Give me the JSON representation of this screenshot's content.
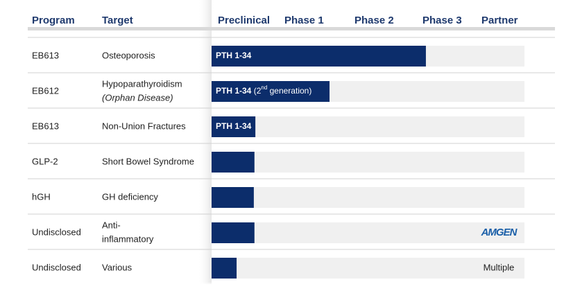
{
  "header": {
    "columns": [
      "Program",
      "Target",
      "Preclinical",
      "Phase 1",
      "Phase 2",
      "Phase 3",
      "Partner"
    ]
  },
  "progress_range": [
    0,
    100
  ],
  "rows": [
    {
      "program": "EB613",
      "target": [
        "Osteoporosis"
      ],
      "bar_label": [
        "PTH 1-34"
      ],
      "progress": 68.5
    },
    {
      "program": "EB612",
      "target": [
        "Hypoparathyroidism",
        "(Orphan Disease)"
      ],
      "bar_label": [
        "PTH 1-34",
        " (2",
        "nd",
        " generation)"
      ],
      "progress": 37.7
    },
    {
      "program": "EB613",
      "target": [
        "Non-Union Fractures"
      ],
      "bar_label": [
        "PTH 1-34"
      ],
      "progress": 14
    },
    {
      "program": "GLP-2",
      "target": [
        "Short Bowel Syndrome"
      ],
      "progress": 13.7
    },
    {
      "program": "hGH",
      "target": [
        "GH deficiency"
      ],
      "progress": 13.5
    },
    {
      "program": "Undisclosed",
      "target": [
        "Anti-",
        "inflammatory"
      ],
      "progress": 13.7,
      "partner": "AMGEN"
    },
    {
      "program": "Undisclosed",
      "target": [
        "Various"
      ],
      "progress": 8,
      "partner": "Multiple"
    }
  ]
}
